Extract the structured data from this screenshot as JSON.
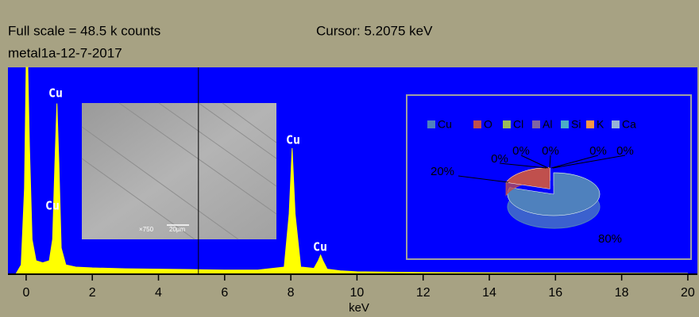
{
  "header": {
    "full_scale": "Full scale = 48.5 k counts",
    "cursor": "Cursor: 5.2075 keV",
    "sample": "metal1a-12-7-2017"
  },
  "chart_data": [
    {
      "type": "spectrum",
      "x_label": "keV",
      "cursor_x": 5.2075,
      "color": "#ffff00",
      "x": [
        -0.3,
        -0.15,
        -0.05,
        0.0,
        0.05,
        0.1,
        0.18,
        0.3,
        0.5,
        0.7,
        0.8,
        0.87,
        0.93,
        0.99,
        1.06,
        1.2,
        1.5,
        2.0,
        3.0,
        4.0,
        5.0,
        6.0,
        7.0,
        7.8,
        7.95,
        8.04,
        8.13,
        8.3,
        8.7,
        8.83,
        8.9,
        8.97,
        9.1,
        9.5,
        10.0,
        12.0,
        15.0,
        20.0
      ],
      "values": [
        0,
        2,
        20,
        48.5,
        48.5,
        30,
        8,
        3,
        2.5,
        3,
        8,
        26,
        40,
        26,
        6,
        2,
        1.5,
        1.3,
        1.1,
        1.0,
        0.9,
        0.8,
        0.8,
        1.5,
        14,
        29.5,
        14,
        1.5,
        1.2,
        3,
        4.3,
        3,
        1,
        0.6,
        0.4,
        0.2,
        0.1,
        0
      ],
      "xlim": [
        -0.55,
        20.29
      ],
      "ylim": [
        0,
        48.5
      ],
      "xticks": [
        0,
        2,
        4,
        6,
        8,
        10,
        12,
        14,
        16,
        18,
        20
      ],
      "annotations": [
        "Cu",
        "Cu",
        "Cu",
        "Cu"
      ],
      "image": {
        "magnification": "×750",
        "scale": "20µm"
      }
    },
    {
      "type": "pie",
      "categories": [
        "Cu",
        "O",
        "Cl",
        "Al",
        "Si",
        "K",
        "Ca"
      ],
      "values": [
        80,
        20,
        0,
        0,
        0,
        0,
        0
      ],
      "value_labels": [
        "80%",
        "20%",
        "0%",
        "0%",
        "0%",
        "0%",
        "0%"
      ],
      "colors": [
        "#4f81bd",
        "#c0504d",
        "#9bbb59",
        "#8064a2",
        "#4bacc6",
        "#f79646",
        "#95b3d7"
      ]
    }
  ]
}
